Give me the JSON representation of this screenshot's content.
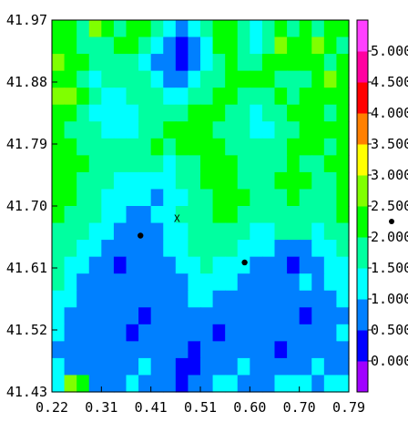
{
  "chart_data": {
    "type": "heatmap",
    "title": "",
    "xlabel": "",
    "ylabel": "",
    "xlim": [
      0.22,
      0.79
    ],
    "ylim": [
      41.43,
      41.97
    ],
    "x_ticks": [
      "0.22",
      "0.31",
      "0.41",
      "0.51",
      "0.60",
      "0.70",
      "0.79"
    ],
    "y_ticks": [
      "41.97",
      "41.88",
      "41.79",
      "41.70",
      "41.61",
      "41.52",
      "41.43"
    ],
    "colorbar": {
      "levels": [
        0.0,
        0.5,
        1.0,
        1.5,
        2.0,
        2.5,
        3.0,
        3.5,
        4.0,
        4.5,
        5.0
      ],
      "tick_labels": [
        "0.000",
        "0.500",
        "1.000",
        "1.500",
        "2.000",
        "2.500",
        "3.000",
        "3.500",
        "4.000",
        "4.500",
        "5.000"
      ],
      "colors": [
        "#a000ff",
        "#0000ff",
        "#0080ff",
        "#00ffff",
        "#00ffa0",
        "#00ff00",
        "#80ff00",
        "#ffff00",
        "#ff8000",
        "#ff0000",
        "#ff00a0",
        "#ff40ff"
      ],
      "marker_value": 2.25
    },
    "points": [
      {
        "x": 0.39,
        "y": 41.657,
        "symbol": "dot"
      },
      {
        "x": 0.59,
        "y": 41.618,
        "symbol": "dot"
      },
      {
        "x": 0.46,
        "y": 41.682,
        "symbol": "x",
        "label": "X"
      }
    ],
    "grid_values": [
      [
        2.1,
        2.3,
        1.8,
        2.6,
        2.2,
        1.9,
        2.4,
        2.0,
        1.7,
        1.2,
        0.8,
        1.4,
        1.9,
        2.2,
        2.0,
        1.6,
        1.3,
        1.8,
        2.2,
        1.8,
        2.3,
        1.5,
        2.4,
        2.1
      ],
      [
        2.4,
        2.0,
        1.9,
        1.5,
        1.7,
        2.1,
        2.2,
        1.6,
        1.1,
        0.7,
        0.4,
        0.8,
        1.4,
        2.0,
        2.2,
        1.8,
        1.4,
        1.9,
        2.5,
        2.0,
        2.2,
        2.6,
        2.3,
        1.9
      ],
      [
        2.7,
        2.2,
        2.1,
        1.8,
        1.6,
        1.9,
        1.7,
        1.2,
        0.9,
        0.6,
        0.4,
        0.7,
        1.3,
        1.8,
        2.1,
        1.9,
        1.7,
        2.1,
        2.2,
        2.3,
        2.4,
        2.0,
        1.8,
        2.2
      ],
      [
        2.3,
        2.0,
        1.6,
        1.4,
        1.5,
        1.7,
        1.8,
        1.5,
        1.1,
        0.9,
        0.8,
        1.0,
        1.5,
        1.9,
        2.3,
        2.2,
        2.0,
        2.1,
        1.9,
        1.7,
        1.8,
        2.1,
        2.5,
        2.3
      ],
      [
        2.5,
        2.6,
        2.2,
        1.7,
        1.3,
        1.2,
        1.5,
        1.8,
        1.6,
        1.4,
        1.3,
        1.6,
        1.9,
        2.2,
        2.0,
        1.7,
        1.5,
        1.8,
        2.0,
        1.9,
        2.1,
        2.3,
        2.2,
        2.1
      ],
      [
        2.2,
        2.1,
        1.9,
        1.4,
        1.1,
        1.0,
        1.3,
        1.6,
        1.8,
        1.7,
        1.9,
        2.0,
        2.2,
        2.1,
        1.9,
        1.6,
        1.4,
        1.5,
        1.8,
        2.0,
        2.2,
        2.1,
        1.9,
        2.0
      ],
      [
        2.0,
        1.9,
        1.8,
        1.6,
        1.4,
        1.3,
        1.2,
        1.5,
        1.9,
        2.1,
        2.2,
        2.3,
        2.1,
        1.9,
        1.7,
        1.5,
        1.3,
        1.4,
        1.7,
        1.9,
        2.0,
        2.2,
        2.3,
        2.1
      ],
      [
        2.3,
        2.2,
        1.9,
        1.7,
        1.6,
        1.5,
        1.6,
        1.8,
        2.0,
        1.9,
        2.1,
        2.4,
        2.3,
        2.0,
        1.8,
        1.6,
        1.5,
        1.6,
        1.8,
        2.0,
        2.1,
        2.0,
        1.9,
        2.2
      ],
      [
        2.4,
        2.2,
        2.0,
        1.8,
        1.7,
        1.6,
        1.5,
        1.7,
        1.6,
        1.4,
        1.6,
        1.9,
        2.1,
        2.2,
        2.0,
        1.8,
        1.6,
        1.7,
        1.9,
        2.0,
        1.9,
        1.8,
        2.0,
        2.1
      ],
      [
        2.1,
        2.0,
        1.8,
        1.7,
        1.5,
        1.4,
        1.3,
        1.2,
        1.1,
        1.3,
        1.5,
        1.7,
        2.0,
        2.3,
        2.1,
        1.9,
        1.7,
        1.8,
        2.0,
        2.1,
        2.0,
        1.9,
        1.8,
        2.0
      ],
      [
        2.2,
        2.1,
        1.9,
        1.6,
        1.4,
        1.2,
        1.1,
        1.0,
        0.9,
        1.2,
        1.4,
        1.6,
        1.8,
        2.0,
        2.2,
        2.0,
        1.8,
        1.7,
        1.9,
        2.0,
        1.9,
        1.8,
        1.9,
        2.1
      ],
      [
        2.0,
        1.9,
        1.7,
        1.5,
        1.3,
        1.1,
        0.9,
        0.8,
        1.0,
        1.3,
        1.5,
        1.7,
        1.9,
        2.1,
        2.0,
        1.8,
        1.6,
        1.5,
        1.7,
        1.8,
        1.7,
        1.6,
        1.8,
        2.0
      ],
      [
        1.9,
        1.7,
        1.5,
        1.2,
        1.0,
        0.8,
        0.6,
        0.7,
        0.9,
        1.1,
        1.4,
        1.6,
        1.8,
        1.9,
        1.8,
        1.6,
        1.4,
        1.3,
        1.5,
        1.6,
        1.5,
        1.4,
        1.6,
        1.8
      ],
      [
        1.8,
        1.5,
        1.2,
        1.0,
        0.7,
        0.5,
        0.6,
        0.8,
        0.7,
        1.0,
        1.2,
        1.5,
        1.7,
        1.6,
        1.5,
        1.3,
        1.1,
        1.0,
        0.8,
        0.6,
        0.9,
        1.1,
        1.3,
        1.5
      ],
      [
        1.6,
        1.3,
        1.0,
        0.8,
        0.6,
        0.4,
        0.5,
        0.7,
        0.6,
        0.8,
        1.0,
        1.3,
        1.5,
        1.4,
        1.2,
        1.0,
        0.8,
        0.7,
        0.5,
        0.4,
        0.7,
        0.9,
        1.2,
        1.4
      ],
      [
        1.5,
        1.2,
        0.9,
        0.7,
        0.5,
        0.6,
        0.8,
        0.9,
        0.7,
        0.6,
        0.8,
        1.1,
        1.3,
        1.2,
        1.0,
        0.9,
        0.7,
        0.6,
        0.8,
        0.9,
        1.0,
        0.8,
        1.0,
        1.2
      ],
      [
        1.3,
        1.0,
        0.8,
        0.6,
        0.7,
        0.9,
        0.8,
        0.6,
        0.5,
        0.7,
        0.9,
        1.0,
        1.1,
        0.9,
        0.8,
        0.7,
        0.6,
        0.8,
        0.9,
        0.7,
        0.6,
        0.8,
        0.9,
        1.0
      ],
      [
        1.1,
        0.9,
        0.7,
        0.8,
        0.9,
        0.7,
        0.5,
        0.4,
        0.6,
        0.8,
        0.9,
        0.8,
        0.7,
        0.6,
        0.5,
        0.6,
        0.7,
        0.9,
        0.7,
        0.5,
        0.4,
        0.6,
        0.8,
        0.9
      ],
      [
        1.0,
        0.8,
        0.6,
        0.7,
        0.8,
        0.6,
        0.4,
        0.5,
        0.7,
        0.9,
        0.7,
        0.6,
        0.5,
        0.4,
        0.6,
        0.8,
        0.9,
        0.7,
        0.6,
        0.5,
        0.6,
        0.7,
        0.9,
        1.0
      ],
      [
        0.9,
        0.7,
        0.5,
        0.6,
        0.7,
        0.5,
        0.6,
        0.8,
        0.9,
        0.7,
        0.5,
        0.4,
        0.6,
        0.7,
        0.8,
        0.9,
        0.7,
        0.5,
        0.4,
        0.6,
        0.8,
        0.9,
        0.8,
        0.9
      ],
      [
        1.0,
        0.8,
        0.6,
        0.5,
        0.6,
        0.7,
        0.9,
        1.0,
        0.8,
        0.6,
        0.4,
        0.3,
        0.5,
        0.7,
        0.9,
        1.0,
        0.8,
        0.6,
        0.5,
        0.7,
        0.9,
        1.0,
        0.9,
        0.8
      ],
      [
        1.2,
        2.6,
        2.0,
        0.8,
        0.7,
        0.8,
        1.0,
        0.9,
        0.7,
        0.5,
        0.4,
        0.6,
        0.8,
        1.0,
        1.1,
        0.9,
        0.7,
        0.8,
        1.0,
        1.1,
        1.0,
        0.9,
        1.2,
        1.4
      ]
    ]
  }
}
